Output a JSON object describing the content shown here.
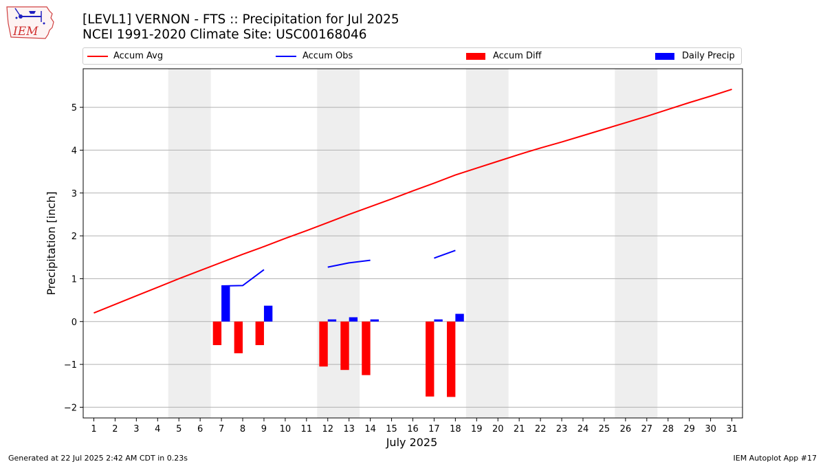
{
  "header": {
    "title_line1": "[LEVL1] VERNON - FTS :: Precipitation for Jul 2025",
    "title_line2": "NCEI 1991-2020 Climate Site: USC00168046"
  },
  "logo": {
    "text": "IEM",
    "icon": "iowa-state-outline-icon"
  },
  "footer": {
    "left": "Generated at 22 Jul 2025 2:42 AM CDT in 0.23s",
    "right": "IEM Autoplot App #17"
  },
  "legend": {
    "accum_avg": "Accum Avg",
    "accum_obs": "Accum Obs",
    "accum_diff": "Accum Diff",
    "daily_precip": "Daily Precip"
  },
  "colors": {
    "accum_avg": "#ff0000",
    "accum_obs": "#0000ff",
    "accum_diff": "#ff0000",
    "daily_precip": "#0000ff",
    "weekend_shade": "#eeeeee",
    "grid": "#b0b0b0"
  },
  "chart_data": {
    "type": "bar",
    "xlabel": "July 2025",
    "ylabel": "Precipitation [inch]",
    "xlim": [
      0.5,
      31.5
    ],
    "ylim": [
      -2.25,
      5.9
    ],
    "yticks": [
      -2,
      -1,
      0,
      1,
      2,
      3,
      4,
      5
    ],
    "ytick_labels": [
      "−2",
      "−1",
      "0",
      "1",
      "2",
      "3",
      "4",
      "5"
    ],
    "grid": "horizontal",
    "legend_position": "top",
    "days": [
      1,
      2,
      3,
      4,
      5,
      6,
      7,
      8,
      9,
      10,
      11,
      12,
      13,
      14,
      15,
      16,
      17,
      18,
      19,
      20,
      21,
      22,
      23,
      24,
      25,
      26,
      27,
      28,
      29,
      30,
      31
    ],
    "weekend_spans": [
      [
        4.5,
        6.5
      ],
      [
        11.5,
        13.5
      ],
      [
        18.5,
        20.5
      ],
      [
        25.5,
        27.5
      ]
    ],
    "series": [
      {
        "name": "Accum Avg",
        "kind": "line",
        "x": [
          1,
          2,
          3,
          4,
          5,
          6,
          7,
          8,
          9,
          10,
          11,
          12,
          13,
          14,
          15,
          16,
          17,
          18,
          19,
          20,
          21,
          22,
          23,
          24,
          25,
          26,
          27,
          28,
          29,
          30,
          31
        ],
        "values": [
          0.2,
          0.4,
          0.6,
          0.8,
          1.0,
          1.19,
          1.38,
          1.57,
          1.75,
          1.94,
          2.12,
          2.31,
          2.5,
          2.68,
          2.86,
          3.05,
          3.23,
          3.42,
          3.58,
          3.74,
          3.9,
          4.05,
          4.19,
          4.34,
          4.49,
          4.64,
          4.79,
          4.95,
          5.11,
          5.26,
          5.42
        ]
      },
      {
        "name": "Accum Obs",
        "kind": "line",
        "segments": [
          {
            "x": [
              7,
              8,
              9
            ],
            "values": [
              0.83,
              0.84,
              1.21
            ]
          },
          {
            "x": [
              12,
              13,
              14
            ],
            "values": [
              1.27,
              1.37,
              1.43
            ]
          },
          {
            "x": [
              17,
              18
            ],
            "values": [
              1.48,
              1.66
            ]
          }
        ]
      },
      {
        "name": "Accum Diff",
        "kind": "bar",
        "x": [
          7,
          8,
          9,
          12,
          13,
          14,
          17,
          18
        ],
        "values": [
          -0.55,
          -0.74,
          -0.55,
          -1.05,
          -1.13,
          -1.25,
          -1.75,
          -1.76
        ]
      },
      {
        "name": "Daily Precip",
        "kind": "bar",
        "x": [
          7,
          9,
          12,
          13,
          14,
          17,
          18
        ],
        "values": [
          0.82,
          0.37,
          0.05,
          0.1,
          0.05,
          0.05,
          0.18
        ]
      }
    ]
  }
}
